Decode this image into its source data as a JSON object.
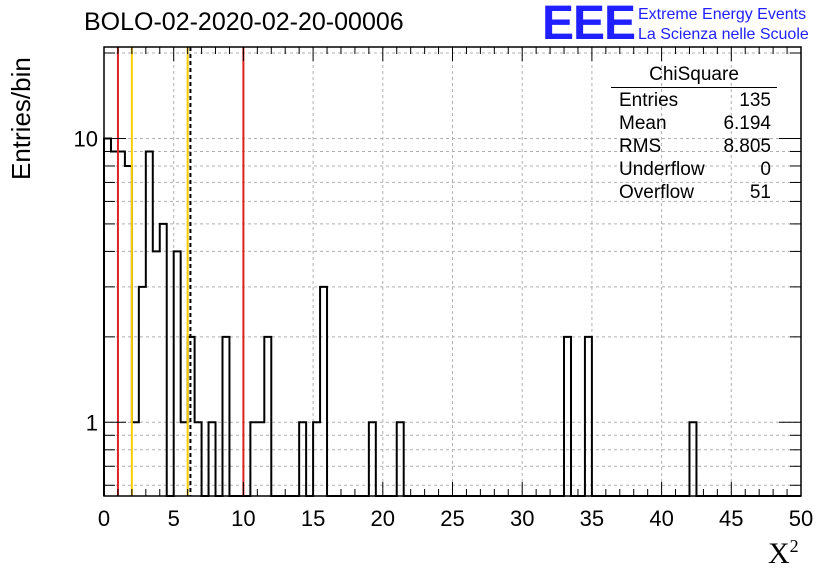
{
  "header": {
    "title": "BOLO-02-2020-02-20-00006",
    "logo_text": "EEE",
    "logo_line1": "Extreme Energy Events",
    "logo_line2": "La Scienza nelle Scuole"
  },
  "stats_box": {
    "title": "ChiSquare",
    "rows": [
      {
        "label": "Entries",
        "value": "135"
      },
      {
        "label": "Mean",
        "value": "6.194"
      },
      {
        "label": "RMS",
        "value": "8.805"
      },
      {
        "label": "Underflow",
        "value": "0"
      },
      {
        "label": "Overflow",
        "value": "51"
      }
    ]
  },
  "chart_data": {
    "type": "bar",
    "title": "BOLO-02-2020-02-20-00006",
    "xlabel": "X",
    "xlabel_superscript": "2",
    "ylabel": "Entries/bin",
    "xlim": [
      0,
      50
    ],
    "ylim": [
      0.55,
      21
    ],
    "y_scale": "log",
    "bin_width": 0.5,
    "grid": true,
    "x_ticks": [
      "0",
      "5",
      "10",
      "15",
      "20",
      "25",
      "30",
      "35",
      "40",
      "45",
      "50"
    ],
    "y_ticks": [
      "1",
      "10"
    ],
    "bins": [
      {
        "x": 0.0,
        "count": 10
      },
      {
        "x": 0.5,
        "count": 9
      },
      {
        "x": 1.0,
        "count": 9
      },
      {
        "x": 1.5,
        "count": 8
      },
      {
        "x": 2.0,
        "count": 1
      },
      {
        "x": 2.5,
        "count": 3
      },
      {
        "x": 3.0,
        "count": 9
      },
      {
        "x": 3.5,
        "count": 4
      },
      {
        "x": 4.0,
        "count": 5
      },
      {
        "x": 5.0,
        "count": 4
      },
      {
        "x": 5.5,
        "count": 1
      },
      {
        "x": 6.0,
        "count": 2
      },
      {
        "x": 6.5,
        "count": 1
      },
      {
        "x": 7.5,
        "count": 1
      },
      {
        "x": 8.5,
        "count": 2
      },
      {
        "x": 10.5,
        "count": 1
      },
      {
        "x": 11.0,
        "count": 1
      },
      {
        "x": 11.5,
        "count": 2
      },
      {
        "x": 14.0,
        "count": 1
      },
      {
        "x": 15.0,
        "count": 1
      },
      {
        "x": 15.5,
        "count": 3
      },
      {
        "x": 19.0,
        "count": 1
      },
      {
        "x": 21.0,
        "count": 1
      },
      {
        "x": 33.0,
        "count": 2
      },
      {
        "x": 34.5,
        "count": 2
      },
      {
        "x": 42.0,
        "count": 1
      }
    ],
    "vertical_lines": [
      {
        "x": 1.0,
        "color": "#dd2222",
        "style": "solid"
      },
      {
        "x": 2.0,
        "color": "#ffcc00",
        "style": "solid"
      },
      {
        "x": 6.0,
        "color": "#ffcc00",
        "style": "solid"
      },
      {
        "x": 6.2,
        "color": "#000000",
        "style": "dashed"
      },
      {
        "x": 10.0,
        "color": "#dd2222",
        "style": "solid"
      }
    ],
    "colors": {
      "line": "#000000",
      "grid": "#b0b0b0",
      "accent": "#1f1fff"
    }
  }
}
